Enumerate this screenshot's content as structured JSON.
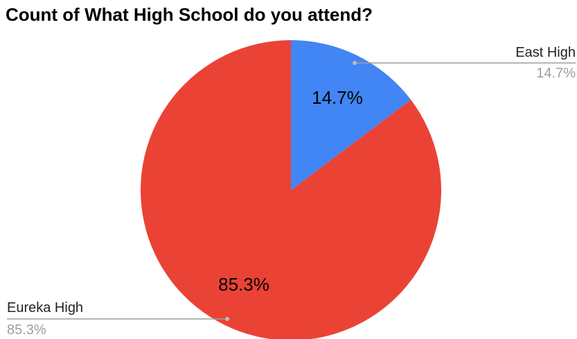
{
  "chart_data": {
    "type": "pie",
    "title": "Count of What High School do you attend?",
    "slices": [
      {
        "label": "East High",
        "value": 14.7,
        "percent_label": "14.7%",
        "color": "#4285F4"
      },
      {
        "label": "Eureka High",
        "value": 85.3,
        "percent_label": "85.3%",
        "color": "#EA4335"
      }
    ],
    "legend": "callout-labels"
  }
}
